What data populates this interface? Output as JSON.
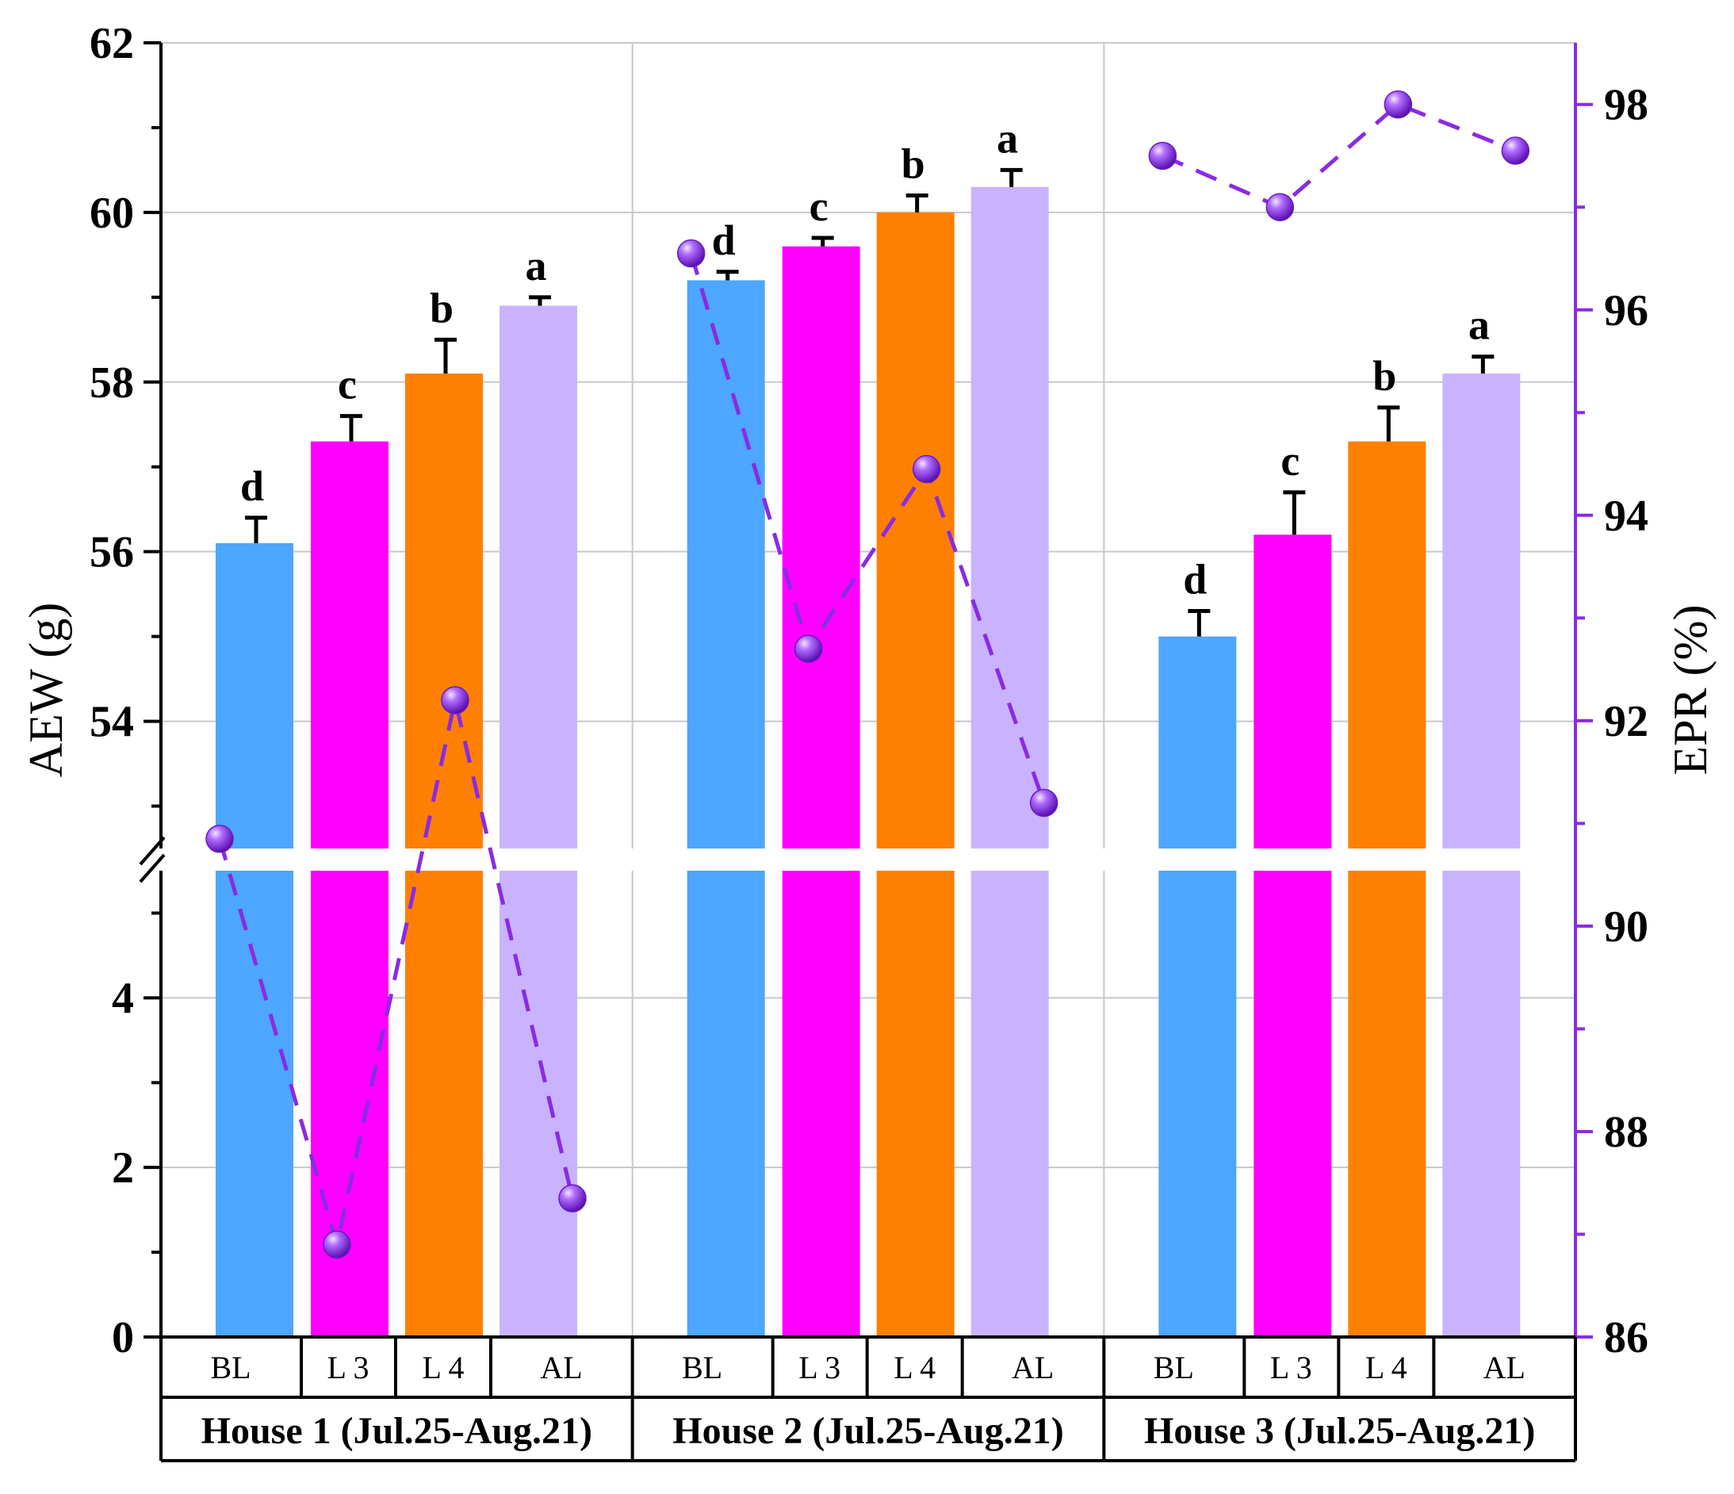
{
  "chart_data": {
    "type": "bar",
    "subtype": "bar with line overlay, broken y-axis, dual axis",
    "y_left_label": "AEW (g)",
    "y_right_label": "EPR (%)",
    "y_left_break": {
      "lower": [
        0,
        5.5
      ],
      "upper": [
        52.5,
        62
      ]
    },
    "y_left_lower_ticks": [
      "0",
      "2",
      "4"
    ],
    "y_left_upper_ticks": [
      "54",
      "56",
      "58",
      "60",
      "62"
    ],
    "y_right_range": [
      86,
      98.6
    ],
    "y_right_ticks": [
      "86",
      "88",
      "90",
      "92",
      "94",
      "96",
      "98"
    ],
    "categories": [
      "BL",
      "L 3",
      "L 4",
      "AL"
    ],
    "series_colors": {
      "BL": "#4da6ff",
      "L 3": "#ff00ff",
      "L 4": "#ff8000",
      "AL": "#c9b3ff"
    },
    "line_color": "#8a2be2",
    "groups": [
      {
        "name": "House 1 (Jul.25-Aug.21)",
        "aew": [
          56.1,
          57.3,
          58.1,
          58.9
        ],
        "err": [
          0.3,
          0.3,
          0.4,
          0.1
        ],
        "sig": [
          "d",
          "c",
          "b",
          "a"
        ],
        "epr": [
          90.85,
          86.9,
          92.2,
          87.35
        ]
      },
      {
        "name": "House 2 (Jul.25-Aug.21)",
        "aew": [
          59.2,
          59.6,
          60.0,
          60.3
        ],
        "err": [
          0.1,
          0.1,
          0.2,
          0.2
        ],
        "sig": [
          "d",
          "c",
          "b",
          "a"
        ],
        "epr": [
          96.55,
          92.7,
          94.45,
          91.2
        ]
      },
      {
        "name": "House 3 (Jul.25-Aug.21)",
        "aew": [
          55.0,
          56.2,
          57.3,
          58.1
        ],
        "err": [
          0.3,
          0.5,
          0.4,
          0.2
        ],
        "sig": [
          "d",
          "c",
          "b",
          "a"
        ],
        "epr": [
          97.5,
          97.0,
          98.0,
          97.55
        ]
      }
    ]
  }
}
